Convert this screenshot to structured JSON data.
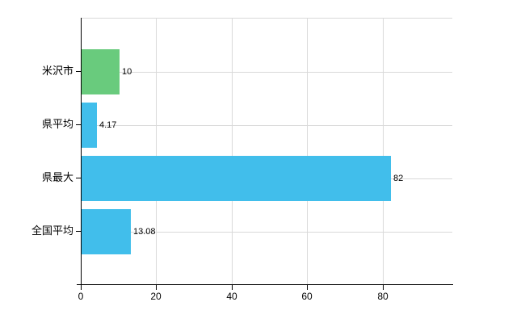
{
  "chart_data": {
    "type": "bar",
    "orientation": "horizontal",
    "title": "",
    "xlabel": "",
    "ylabel": "",
    "categories": [
      "米沢市",
      "県平均",
      "県最大",
      "全国平均"
    ],
    "values": [
      10,
      4.17,
      82,
      13.08
    ],
    "value_labels": [
      "10",
      "4.17",
      "82",
      "13.08"
    ],
    "bar_colors": [
      "#69cb7d",
      "#41beeb",
      "#41beeb",
      "#41beeb"
    ],
    "x_ticks": [
      0,
      20,
      40,
      60,
      80
    ],
    "x_tick_labels": [
      "0",
      "20",
      "40",
      "60",
      "80"
    ],
    "xlim": [
      0,
      98.4
    ],
    "grid": true,
    "legend": false,
    "colors": {
      "grid": "#d9d9d9",
      "axis": "#000000",
      "text": "#000000",
      "background": "#ffffff",
      "bar_green": "#69cb7d",
      "bar_blue": "#41beeb"
    }
  }
}
